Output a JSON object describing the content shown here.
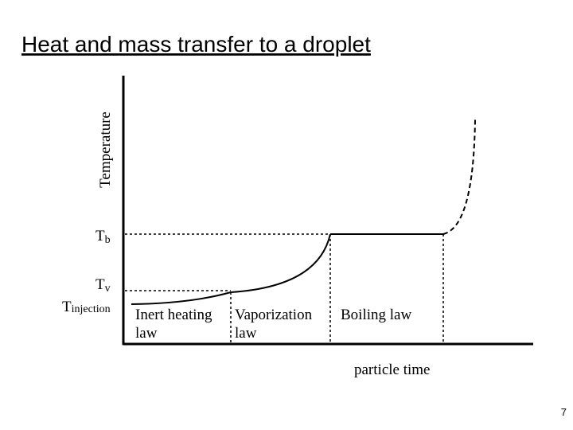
{
  "header": {
    "title": "Heat and mass transfer to a droplet"
  },
  "axes": {
    "y_label": "Temperature",
    "x_label": "particle time"
  },
  "levels": [
    {
      "symbol": "T",
      "subscript": "b"
    },
    {
      "symbol": "T",
      "subscript": "v"
    },
    {
      "symbol": "T",
      "subscript": "injection"
    }
  ],
  "regions": [
    {
      "lines": [
        "Inert heating",
        "law"
      ]
    },
    {
      "lines": [
        "Vaporization",
        "law"
      ]
    },
    {
      "lines": [
        "Boiling law"
      ]
    }
  ],
  "footer": {
    "page_number": "7"
  }
}
